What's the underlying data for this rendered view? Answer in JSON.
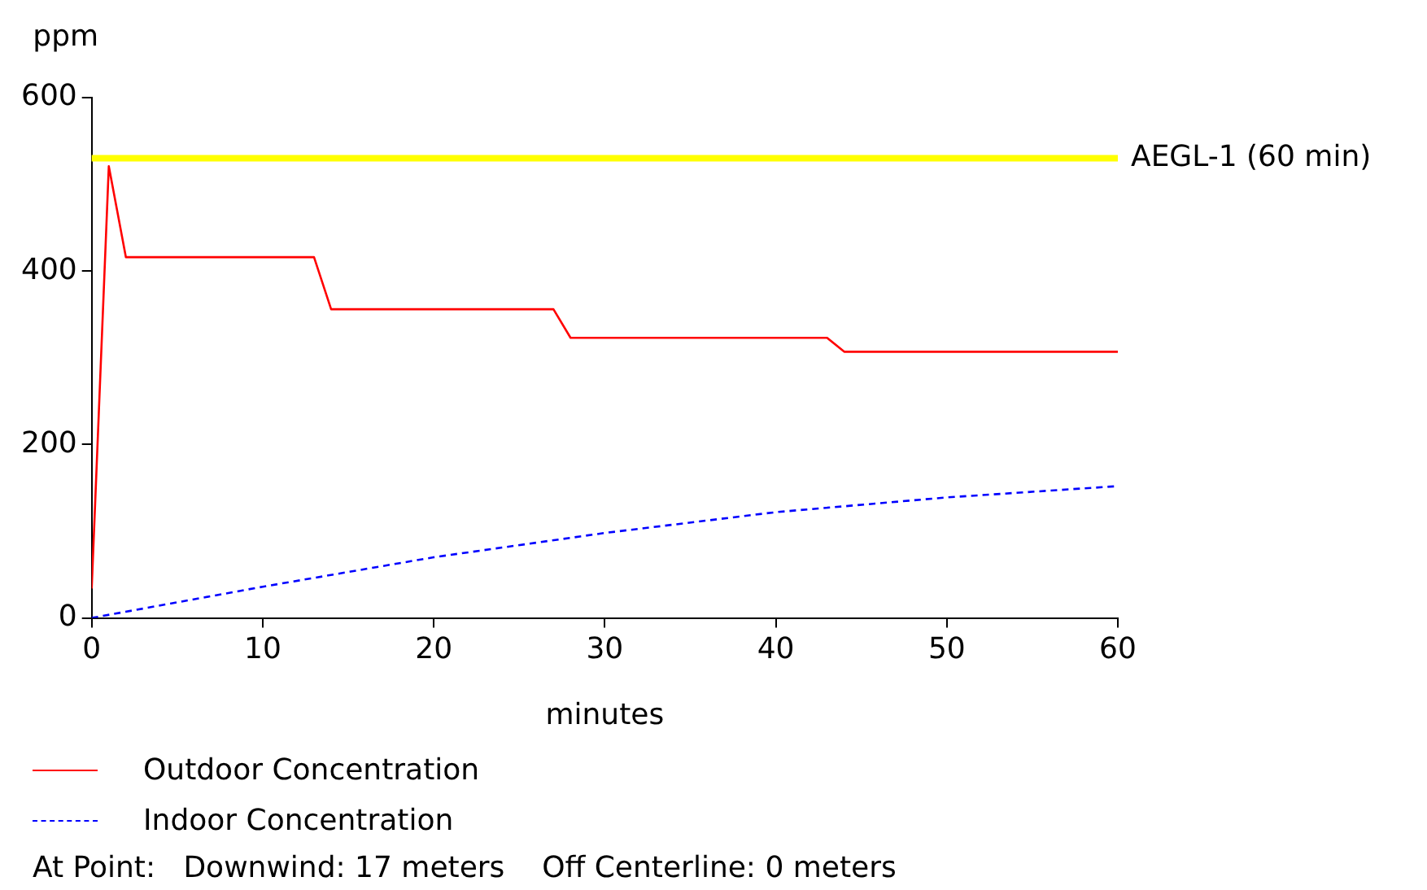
{
  "chart_data": {
    "type": "line",
    "xlabel": "minutes",
    "ylabel": "ppm",
    "xlim": [
      0,
      60
    ],
    "xticks": [
      0,
      10,
      20,
      30,
      40,
      50,
      60
    ],
    "ylim": [
      0,
      600
    ],
    "yticks": [
      0,
      200,
      400,
      600
    ],
    "grid": false,
    "legend": "bottom left",
    "marker": "none",
    "series": [
      {
        "name": "Outdoor Concentration",
        "color": "#ff0000",
        "line_style": "solid",
        "x": [
          0,
          1,
          2,
          13,
          14,
          27,
          28,
          43,
          44,
          60
        ],
        "values": [
          34,
          521,
          416,
          416,
          356,
          356,
          323,
          323,
          307,
          307
        ]
      },
      {
        "name": "Indoor Concentration",
        "color": "#0000ff",
        "line_style": "dashed",
        "x": [
          0,
          10,
          20,
          30,
          40,
          50,
          60
        ],
        "values": [
          0,
          36,
          70,
          98,
          122,
          139,
          152
        ]
      }
    ],
    "ref_lines": [
      {
        "axis": "y",
        "value": 530,
        "label": "AEGL-1 (60 min)",
        "color": "#ffff00",
        "line_style": "solid"
      }
    ],
    "annotations": [
      "At Point:   Downwind: 17 meters    Off Centerline: 0 meters"
    ]
  }
}
